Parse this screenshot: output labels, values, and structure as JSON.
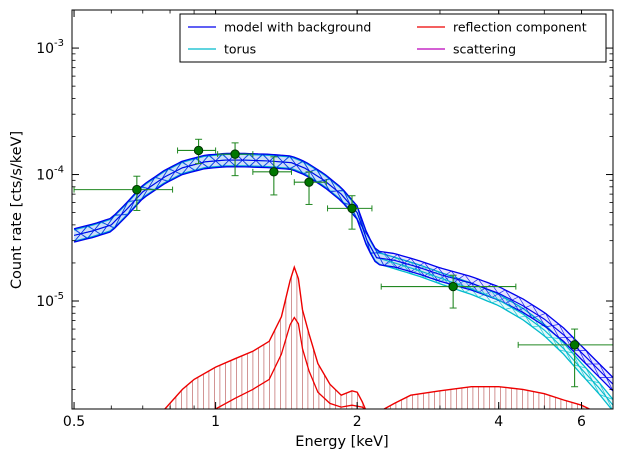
{
  "chart_data": {
    "type": "line",
    "xlabel": "Energy [keV]",
    "ylabel": "Count rate [cts/s/keV]",
    "xscale": "log",
    "yscale": "log",
    "xlim": [
      0.495,
      7.0
    ],
    "ylim": [
      1.4e-06,
      0.002
    ],
    "x_ticks": [
      {
        "value": 0.5,
        "label": "0.5"
      },
      {
        "value": 1,
        "label": "1"
      },
      {
        "value": 2,
        "label": "2"
      },
      {
        "value": 4,
        "label": "4"
      },
      {
        "value": 6,
        "label": "6"
      }
    ],
    "y_ticks": [
      {
        "value": 1e-05,
        "label": "10",
        "exp": "-5"
      },
      {
        "value": 0.0001,
        "label": "10",
        "exp": "-4"
      },
      {
        "value": 0.001,
        "label": "10",
        "exp": "-3"
      }
    ],
    "legend_position": "top-right",
    "legend_columns": 2,
    "grid": false,
    "series": [
      {
        "name": "model with background",
        "color": "#0000ee",
        "x": [
          0.5,
          0.55,
          0.6,
          0.65,
          0.7,
          0.78,
          0.85,
          0.95,
          1.05,
          1.15,
          1.3,
          1.45,
          1.55,
          1.7,
          1.85,
          2.0,
          2.1,
          2.2,
          2.4,
          2.7,
          3.0,
          3.5,
          4.0,
          4.5,
          5.0,
          5.5,
          6.0,
          6.5,
          7.0
        ],
        "y": [
          3.3e-05,
          3.6e-05,
          4e-05,
          5.4e-05,
          7.3e-05,
          9.6e-05,
          0.000113,
          0.000126,
          0.00013,
          0.00013,
          0.000128,
          0.000124,
          0.000112,
          9e-05,
          7e-05,
          5e-05,
          3e-05,
          2.2e-05,
          2.1e-05,
          1.85e-05,
          1.62e-05,
          1.38e-05,
          1.15e-05,
          9.2e-06,
          7.2e-06,
          5.4e-06,
          3.9e-06,
          2.9e-06,
          2.2e-06
        ]
      },
      {
        "name": "torus",
        "color": "#00bbcc",
        "x": [
          0.5,
          0.55,
          0.6,
          0.65,
          0.7,
          0.78,
          0.85,
          0.95,
          1.05,
          1.15,
          1.3,
          1.45,
          1.55,
          1.7,
          1.85,
          2.0,
          2.1,
          2.2,
          2.4,
          2.7,
          3.0,
          3.5,
          4.0,
          4.5,
          5.0,
          5.5,
          6.0,
          6.5,
          7.0
        ],
        "y": [
          3.3e-05,
          3.6e-05,
          4e-05,
          5.4e-05,
          7.3e-05,
          9.6e-05,
          0.000113,
          0.000126,
          0.00013,
          0.00013,
          0.000128,
          0.000124,
          0.000112,
          9e-05,
          7e-05,
          5e-05,
          3e-05,
          2.2e-05,
          2e-05,
          1.75e-05,
          1.52e-05,
          1.25e-05,
          1.02e-05,
          7.9e-06,
          5.9e-06,
          4.2e-06,
          2.9e-06,
          2.1e-06,
          1.5e-06
        ]
      },
      {
        "name": "reflection component",
        "color": "#ee0000",
        "x": [
          0.78,
          0.85,
          0.9,
          1.0,
          1.1,
          1.2,
          1.3,
          1.38,
          1.44,
          1.47,
          1.5,
          1.53,
          1.58,
          1.65,
          1.75,
          1.85,
          1.95,
          2.0,
          2.05,
          2.1,
          2.2,
          2.4,
          2.6,
          3.0,
          3.5,
          4.0,
          4.5,
          5.0,
          5.5,
          6.0,
          6.5,
          7.0
        ],
        "y": [
          1.4e-06,
          2e-06,
          2.4e-06,
          3e-06,
          3.5e-06,
          4e-06,
          4.8e-06,
          7.5e-06,
          1.45e-05,
          1.85e-05,
          1.5e-05,
          8.5e-06,
          5.5e-06,
          3.2e-06,
          2.2e-06,
          1.8e-06,
          1.95e-06,
          1.9e-06,
          1.6e-06,
          1.3e-06,
          1.3e-06,
          1.55e-06,
          1.8e-06,
          1.95e-06,
          2.1e-06,
          2.1e-06,
          2e-06,
          1.85e-06,
          1.65e-06,
          1.5e-06,
          1.3e-06,
          1.1e-06
        ]
      },
      {
        "name": "scattering",
        "color": "#bb00bb",
        "x": [],
        "y": []
      }
    ],
    "reflection_band_lower": {
      "x": [
        1.0,
        1.1,
        1.2,
        1.3,
        1.38,
        1.44,
        1.47,
        1.5,
        1.53,
        1.58,
        1.65,
        1.75,
        1.85,
        1.95,
        2.05,
        2.15
      ],
      "y": [
        1.4e-06,
        1.7e-06,
        2e-06,
        2.4e-06,
        3.8e-06,
        6.5e-06,
        7.4e-06,
        6.6e-06,
        4.2e-06,
        2.8e-06,
        1.9e-06,
        1.55e-06,
        1.45e-06,
        1.5e-06,
        1.45e-06,
        1.3e-06
      ]
    },
    "data_points": {
      "color": "#007700",
      "edge_color": "#003300",
      "points": [
        {
          "x": 0.68,
          "y": 7.6e-05,
          "xlo": 0.5,
          "xhi": 0.81,
          "ylo": 5.2e-05,
          "yhi": 9.7e-05
        },
        {
          "x": 0.92,
          "y": 0.000155,
          "xlo": 0.83,
          "xhi": 1.0,
          "ylo": 0.000122,
          "yhi": 0.00019
        },
        {
          "x": 1.1,
          "y": 0.000145,
          "xlo": 1.01,
          "xhi": 1.2,
          "ylo": 9.8e-05,
          "yhi": 0.000178
        },
        {
          "x": 1.33,
          "y": 0.000105,
          "xlo": 1.2,
          "xhi": 1.45,
          "ylo": 6.9e-05,
          "yhi": 0.000138
        },
        {
          "x": 1.58,
          "y": 8.7e-05,
          "xlo": 1.47,
          "xhi": 1.72,
          "ylo": 5.8e-05,
          "yhi": 0.000105
        },
        {
          "x": 1.95,
          "y": 5.4e-05,
          "xlo": 1.73,
          "xhi": 2.15,
          "ylo": 3.7e-05,
          "yhi": 6.8e-05
        },
        {
          "x": 3.2,
          "y": 1.3e-05,
          "xlo": 2.25,
          "xhi": 4.35,
          "ylo": 8.8e-06,
          "yhi": 1.6e-05
        },
        {
          "x": 5.8,
          "y": 4.5e-06,
          "xlo": 4.4,
          "xhi": 7.0,
          "ylo": 2.1e-06,
          "yhi": 6e-06
        }
      ]
    }
  }
}
